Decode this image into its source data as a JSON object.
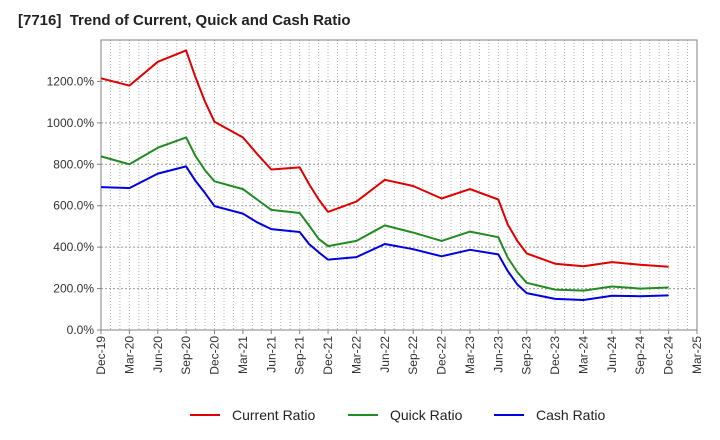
{
  "chart_data": {
    "type": "line",
    "title": "[7716]  Trend of Current, Quick and Cash Ratio",
    "xlabel": "",
    "ylabel": "",
    "ylim": [
      0,
      1400
    ],
    "yticks": [
      0,
      200,
      400,
      600,
      800,
      1000,
      1200
    ],
    "ytick_labels": [
      "0.0%",
      "200.0%",
      "400.0%",
      "600.0%",
      "800.0%",
      "1000.0%",
      "1200.0%"
    ],
    "xticks": [
      "Dec-19",
      "Mar-20",
      "Jun-20",
      "Sep-20",
      "Dec-20",
      "Mar-21",
      "Jun-21",
      "Sep-21",
      "Dec-21",
      "Mar-22",
      "Jun-22",
      "Sep-22",
      "Dec-22",
      "Mar-23",
      "Jun-23",
      "Sep-23",
      "Dec-23",
      "Mar-24",
      "Jun-24",
      "Sep-24",
      "Dec-24",
      "Mar-25"
    ],
    "x": [
      0,
      1,
      2,
      3,
      3.33,
      3.67,
      4,
      5,
      5.5,
      6,
      7,
      7.33,
      7.67,
      8,
      9,
      10,
      11,
      12,
      13,
      14,
      14.33,
      14.67,
      15,
      16,
      17,
      18,
      19,
      20
    ],
    "series": [
      {
        "name": "Current Ratio",
        "color": "#e00000",
        "values": [
          1215,
          1180,
          1295,
          1350,
          1220,
          1100,
          1005,
          930,
          850,
          775,
          785,
          705,
          630,
          570,
          620,
          725,
          695,
          635,
          680,
          630,
          510,
          430,
          370,
          320,
          308,
          328,
          315,
          305
        ]
      },
      {
        "name": "Quick Ratio",
        "color": "#228b22",
        "values": [
          838,
          800,
          880,
          930,
          840,
          770,
          718,
          680,
          630,
          580,
          565,
          505,
          440,
          405,
          430,
          505,
          470,
          430,
          475,
          448,
          350,
          280,
          228,
          195,
          190,
          210,
          200,
          205
        ]
      },
      {
        "name": "Cash Ratio",
        "color": "#0000e0",
        "values": [
          690,
          685,
          755,
          790,
          720,
          660,
          598,
          562,
          520,
          487,
          473,
          415,
          375,
          340,
          352,
          415,
          390,
          356,
          387,
          365,
          285,
          220,
          178,
          150,
          145,
          165,
          163,
          167
        ]
      }
    ],
    "legend_position": "bottom",
    "grid": true
  }
}
